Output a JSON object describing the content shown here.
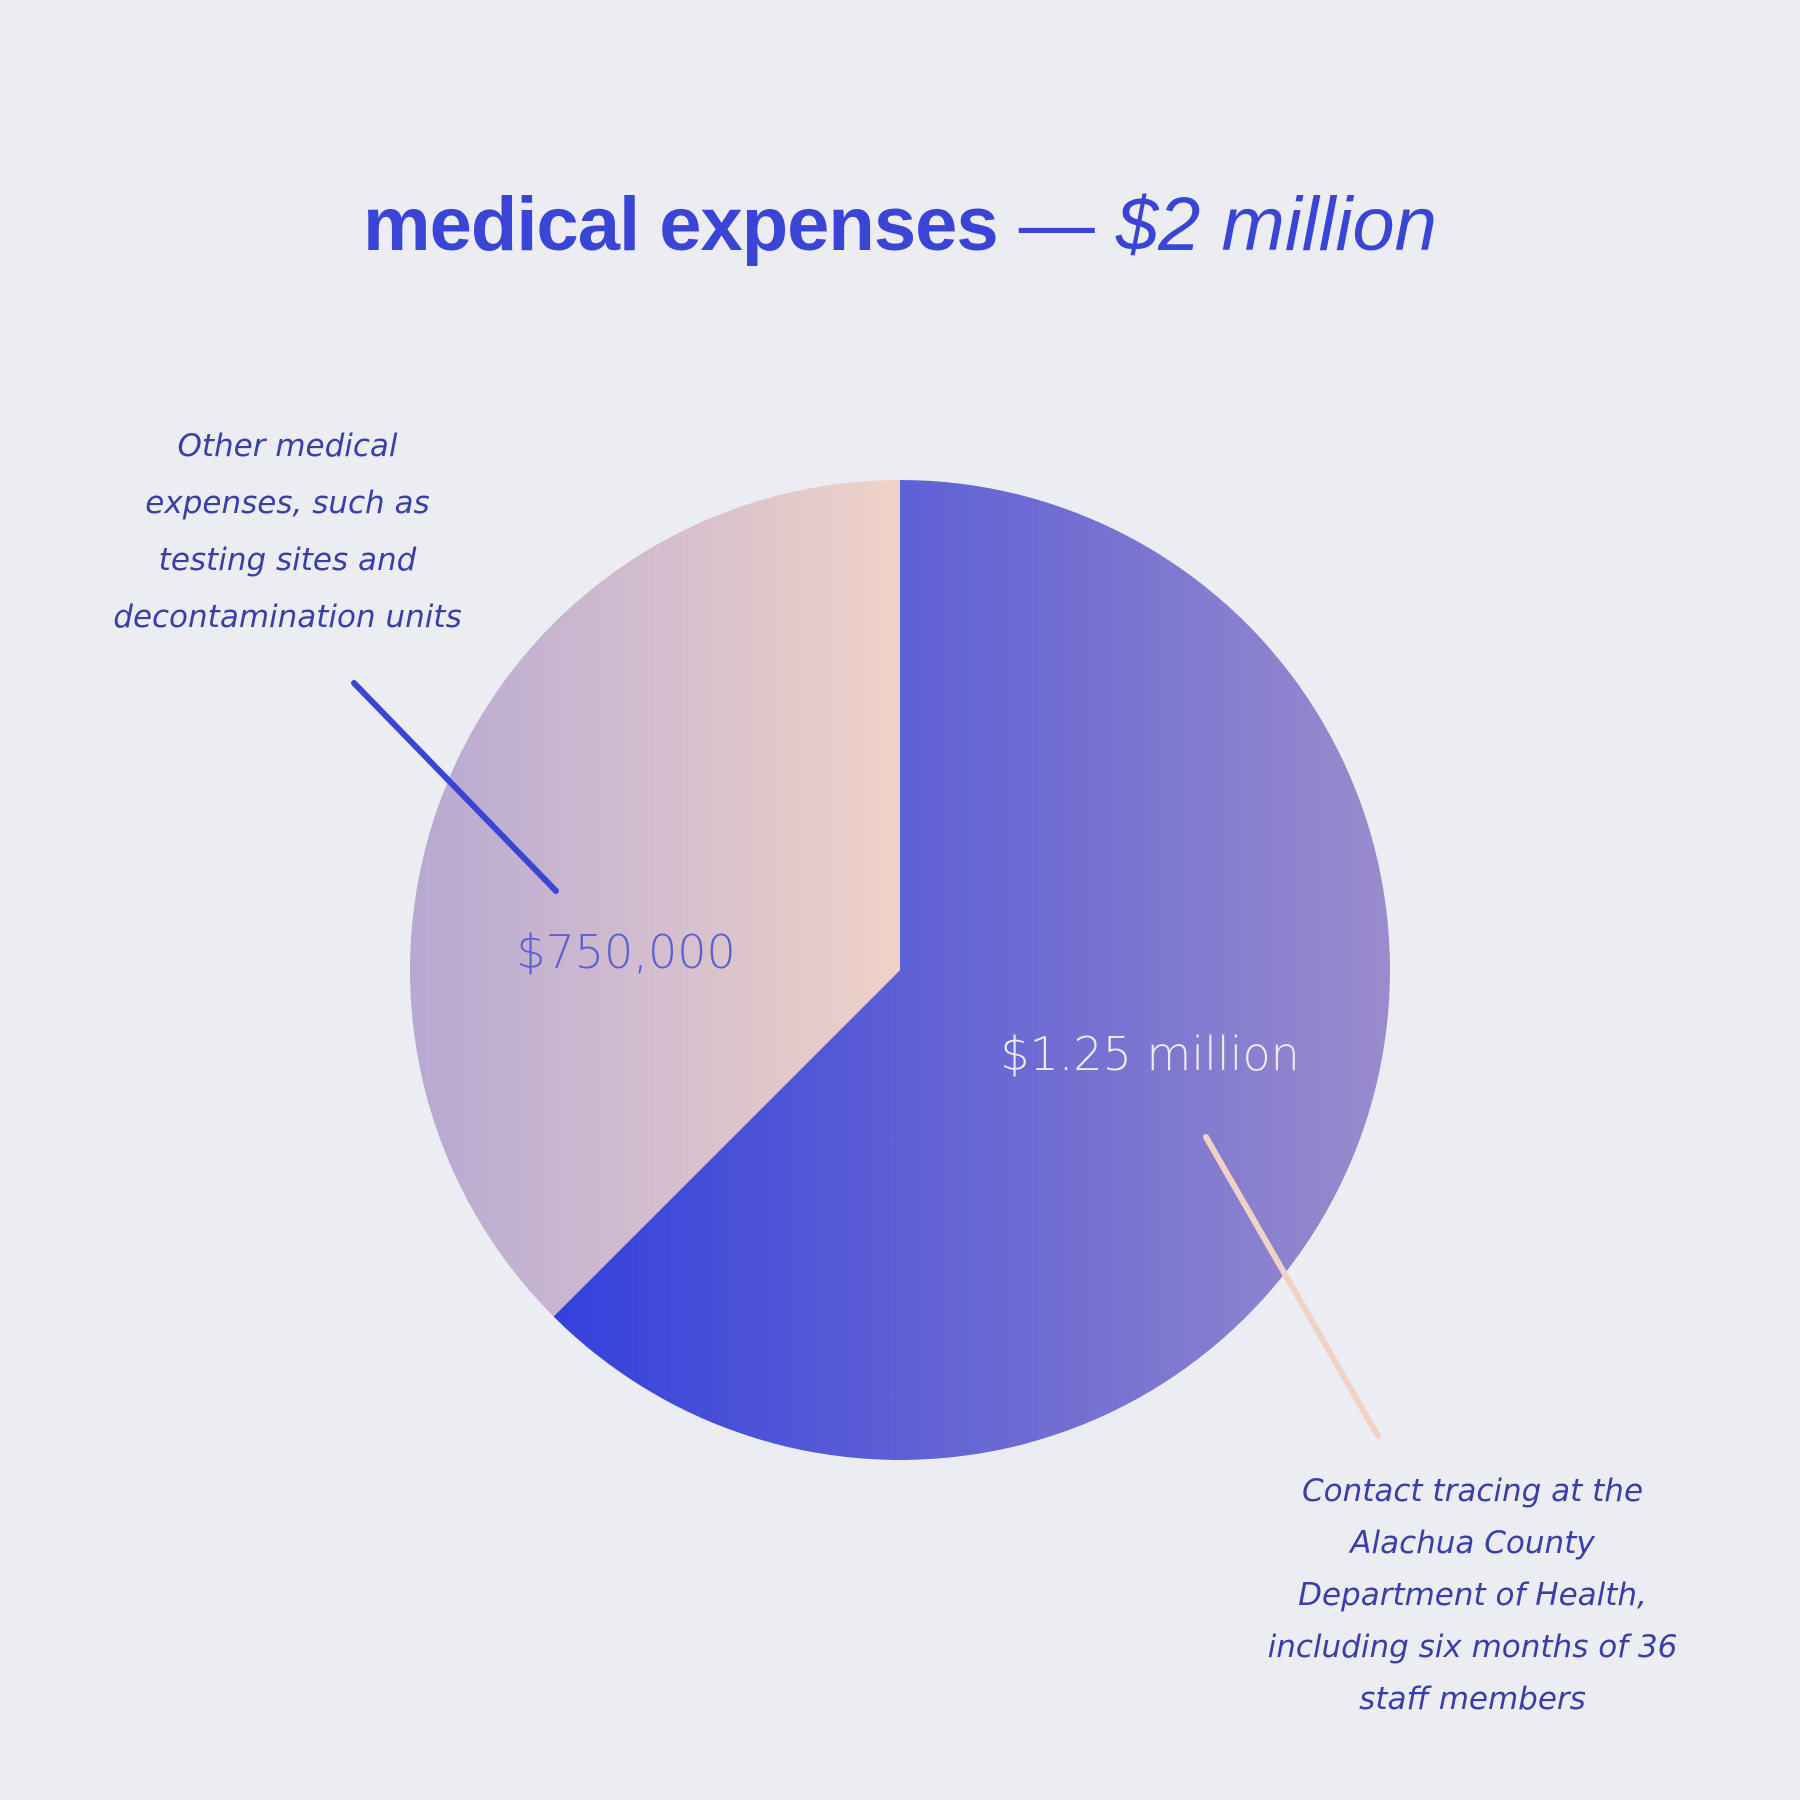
{
  "title": {
    "main": "medical expenses",
    "separator": " — ",
    "total": "$2 million"
  },
  "chart_data": {
    "type": "pie",
    "title": "medical expenses — $2 million",
    "slices": [
      {
        "value": 1250000,
        "value_label": "$1.25 million",
        "annotation": "Contact tracing at the Alachua County Department of Health, including six months of 36 staff members",
        "annotation_lines": [
          "Contact tracing at the",
          "Alachua County",
          "Department of Health,",
          "including six months of 36",
          "staff members"
        ],
        "color_start": "#3340dc",
        "color_end": "#9a8ccc",
        "label_color": "#f1ebf2"
      },
      {
        "value": 750000,
        "value_label": "$750,000",
        "annotation": "Other medical expenses, such as testing sites and decontamination units",
        "annotation_lines": [
          "Other medical",
          "expenses, such as",
          "testing sites and",
          "decontamination units"
        ],
        "color_start": "#b7a8d2",
        "color_end": "#f0d2c8",
        "label_color": "#5a60d0"
      }
    ],
    "start_angle_deg": 0,
    "direction": "clockwise",
    "leader_colors": [
      "#f0d2c6",
      "#3a45d6"
    ]
  }
}
